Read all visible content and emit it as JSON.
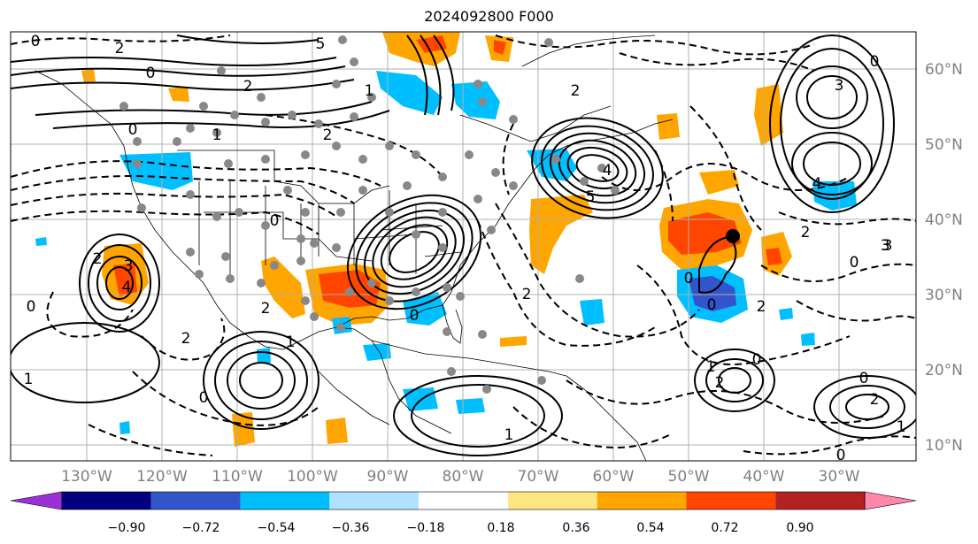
{
  "title": "2024092800 F000",
  "map": {
    "lon_labels": [
      "130°W",
      "120°W",
      "110°W",
      "100°W",
      "90°W",
      "80°W",
      "70°W",
      "60°W",
      "50°W",
      "40°W",
      "30°W"
    ],
    "lat_labels": [
      "60°N",
      "50°N",
      "40°N",
      "30°N",
      "20°N",
      "10°N"
    ],
    "contour_labels": [
      "0",
      "2",
      "5",
      "0",
      "1",
      "0",
      "2",
      "3",
      "4",
      "0",
      "1",
      "2",
      "4",
      "5",
      "2",
      "0",
      "3",
      "2",
      "3",
      "4",
      "0",
      "2",
      "1",
      "0",
      "2",
      "1",
      "0",
      "0",
      "0",
      "1",
      "1",
      "2",
      "0",
      "2",
      "0",
      "2",
      "1",
      "0",
      "2",
      "3",
      "0",
      "2"
    ],
    "label_color": "#808080"
  },
  "colorbar": {
    "tick_labels": [
      "−0.90",
      "−0.72",
      "−0.54",
      "−0.36",
      "−0.18",
      "0.18",
      "0.36",
      "0.54",
      "0.72",
      "0.90"
    ],
    "colors": [
      "#9b30d9",
      "#000080",
      "#3355cc",
      "#00bfff",
      "#b0e2ff",
      "#ffffff",
      "#ffe680",
      "#ffa500",
      "#ff4500",
      "#b22222",
      "#ff88aa"
    ]
  }
}
